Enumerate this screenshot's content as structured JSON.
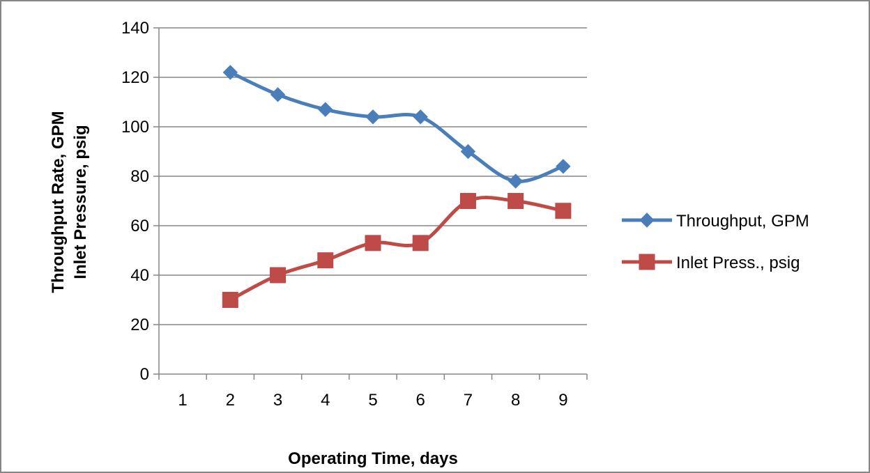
{
  "chart_data": {
    "type": "line",
    "title": "",
    "xlabel": "Operating Time, days",
    "ylabel_lines": [
      "Throughput Rate, GPM",
      "Inlet Pressure, psig"
    ],
    "categories": [
      "1",
      "2",
      "3",
      "4",
      "5",
      "6",
      "7",
      "8",
      "9"
    ],
    "ylim": [
      0,
      140
    ],
    "yticks": [
      "0",
      "20",
      "40",
      "60",
      "80",
      "100",
      "120",
      "140"
    ],
    "grid": "horizontal",
    "legend_position": "right",
    "series": [
      {
        "name": "Throughput, GPM",
        "color": "#4A7EBB",
        "marker": "diamond",
        "values": [
          null,
          122,
          113,
          107,
          104,
          104,
          90,
          78,
          84
        ]
      },
      {
        "name": "Inlet Press., psig",
        "color": "#BE4B48",
        "marker": "square",
        "values": [
          null,
          30,
          40,
          46,
          53,
          53,
          70,
          70,
          66
        ]
      }
    ]
  }
}
